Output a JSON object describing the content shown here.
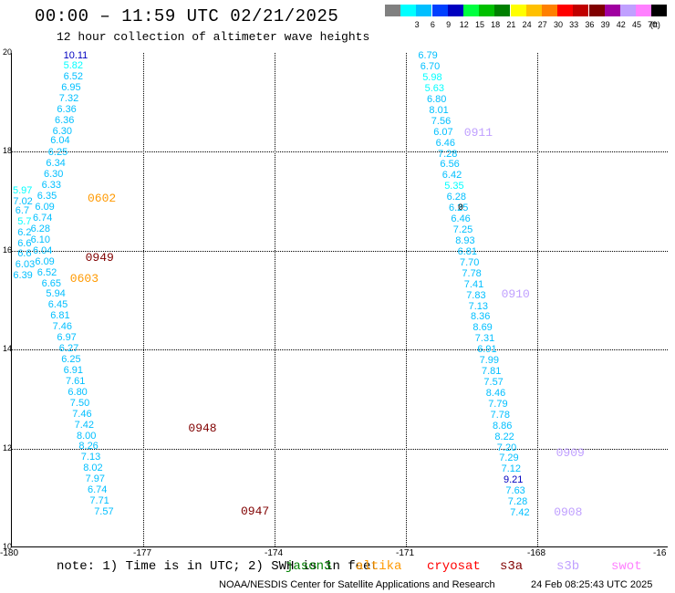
{
  "header": {
    "title": "00:00 – 11:59 UTC 02/21/2025",
    "subtitle": "12 hour collection of altimeter wave heights"
  },
  "legend": {
    "unit": "(ft)",
    "items": [
      {
        "label": "",
        "color": "#808080"
      },
      {
        "label": "3",
        "color": "#00ffff"
      },
      {
        "label": "6",
        "color": "#00bfff"
      },
      {
        "label": "9",
        "color": "#0040ff"
      },
      {
        "label": "12",
        "color": "#0000c0"
      },
      {
        "label": "15",
        "color": "#00ff40"
      },
      {
        "label": "18",
        "color": "#00c000"
      },
      {
        "label": "21",
        "color": "#008000"
      },
      {
        "label": "24",
        "color": "#ffff00"
      },
      {
        "label": "27",
        "color": "#ffc000"
      },
      {
        "label": "30",
        "color": "#ff8000"
      },
      {
        "label": "33",
        "color": "#ff0000"
      },
      {
        "label": "36",
        "color": "#c00000"
      },
      {
        "label": "39",
        "color": "#800000"
      },
      {
        "label": "42",
        "color": "#a000a0"
      },
      {
        "label": "45",
        "color": "#c0a0ff"
      },
      {
        "label": "70",
        "color": "#ff80ff"
      },
      {
        "label": "",
        "color": "#000000"
      }
    ]
  },
  "axes": {
    "x_ticks": [
      "-180",
      "-177",
      "-174",
      "-171",
      "-168",
      "-16"
    ],
    "y_ticks": [
      "20",
      "18",
      "16",
      "14",
      "12",
      "10"
    ]
  },
  "chart_data": {
    "type": "scatter",
    "xlim": [
      -180,
      -165
    ],
    "ylim": [
      10,
      20
    ],
    "tracks": [
      {
        "id": "west",
        "points": [
          {
            "lon": -178.8,
            "lat": 19.94,
            "v": "10.11",
            "c": "#0000c0"
          },
          {
            "lon": -178.8,
            "lat": 19.74,
            "v": "5.82",
            "c": "#00ffff"
          },
          {
            "lon": -178.8,
            "lat": 19.52,
            "v": "6.52",
            "c": "#00bfff"
          },
          {
            "lon": -178.85,
            "lat": 19.3,
            "v": "6.95",
            "c": "#00bfff"
          },
          {
            "lon": -178.9,
            "lat": 19.08,
            "v": "7.32",
            "c": "#00bfff"
          },
          {
            "lon": -178.95,
            "lat": 18.86,
            "v": "6.36",
            "c": "#00bfff"
          },
          {
            "lon": -179.0,
            "lat": 18.64,
            "v": "6.36",
            "c": "#00bfff"
          },
          {
            "lon": -179.05,
            "lat": 18.42,
            "v": "6.30",
            "c": "#00bfff"
          },
          {
            "lon": -179.1,
            "lat": 18.22,
            "v": "6.04",
            "c": "#00bfff"
          },
          {
            "lon": -179.15,
            "lat": 17.98,
            "v": "6.25",
            "c": "#00bfff"
          },
          {
            "lon": -179.2,
            "lat": 17.76,
            "v": "6.34",
            "c": "#00bfff"
          },
          {
            "lon": -179.25,
            "lat": 17.54,
            "v": "6.30",
            "c": "#00bfff"
          },
          {
            "lon": -179.3,
            "lat": 17.32,
            "v": "6.33",
            "c": "#00bfff"
          },
          {
            "lon": -179.4,
            "lat": 17.1,
            "v": "6.35",
            "c": "#00bfff"
          },
          {
            "lon": -179.45,
            "lat": 16.88,
            "v": "6.09",
            "c": "#00bfff"
          },
          {
            "lon": -179.5,
            "lat": 16.66,
            "v": "6.74",
            "c": "#00bfff"
          },
          {
            "lon": -179.55,
            "lat": 16.44,
            "v": "6.28",
            "c": "#00bfff"
          },
          {
            "lon": -179.55,
            "lat": 16.22,
            "v": "6.10",
            "c": "#00bfff"
          },
          {
            "lon": -179.5,
            "lat": 16.0,
            "v": "6.04",
            "c": "#00bfff"
          },
          {
            "lon": -179.45,
            "lat": 15.78,
            "v": "6.09",
            "c": "#00bfff"
          },
          {
            "lon": -179.4,
            "lat": 15.56,
            "v": "6.52",
            "c": "#00bfff"
          },
          {
            "lon": -179.3,
            "lat": 15.34,
            "v": "6.65",
            "c": "#00bfff"
          },
          {
            "lon": -179.2,
            "lat": 15.12,
            "v": "5.94",
            "c": "#00bfff"
          },
          {
            "lon": -179.15,
            "lat": 14.9,
            "v": "6.45",
            "c": "#00bfff"
          },
          {
            "lon": -179.1,
            "lat": 14.68,
            "v": "6.81",
            "c": "#00bfff"
          },
          {
            "lon": -179.05,
            "lat": 14.46,
            "v": "7.46",
            "c": "#00bfff"
          },
          {
            "lon": -178.95,
            "lat": 14.24,
            "v": "6.97",
            "c": "#00bfff"
          },
          {
            "lon": -178.9,
            "lat": 14.02,
            "v": "6.27",
            "c": "#00bfff"
          },
          {
            "lon": -178.85,
            "lat": 13.8,
            "v": "6.25",
            "c": "#00bfff"
          },
          {
            "lon": -178.8,
            "lat": 13.58,
            "v": "6.91",
            "c": "#00bfff"
          },
          {
            "lon": -178.75,
            "lat": 13.36,
            "v": "7.61",
            "c": "#00bfff"
          },
          {
            "lon": -178.7,
            "lat": 13.14,
            "v": "6.80",
            "c": "#00bfff"
          },
          {
            "lon": -178.65,
            "lat": 12.92,
            "v": "7.50",
            "c": "#00bfff"
          },
          {
            "lon": -178.6,
            "lat": 12.7,
            "v": "7.46",
            "c": "#00bfff"
          },
          {
            "lon": -178.55,
            "lat": 12.48,
            "v": "7.42",
            "c": "#00bfff"
          },
          {
            "lon": -178.5,
            "lat": 12.26,
            "v": "8.00",
            "c": "#00bfff"
          },
          {
            "lon": -178.45,
            "lat": 12.04,
            "v": "8.26",
            "c": "#00bfff"
          },
          {
            "lon": -178.4,
            "lat": 11.82,
            "v": "7.13",
            "c": "#00bfff"
          },
          {
            "lon": -178.35,
            "lat": 11.6,
            "v": "8.02",
            "c": "#00bfff"
          },
          {
            "lon": -178.3,
            "lat": 11.38,
            "v": "7.97",
            "c": "#00bfff"
          },
          {
            "lon": -178.25,
            "lat": 11.16,
            "v": "6.74",
            "c": "#00bfff"
          },
          {
            "lon": -178.2,
            "lat": 10.94,
            "v": "7.71",
            "c": "#00bfff"
          },
          {
            "lon": -178.1,
            "lat": 10.72,
            "v": "7.57",
            "c": "#00bfff"
          }
        ]
      },
      {
        "id": "west-branch",
        "points": [
          {
            "lon": -180.0,
            "lat": 17.22,
            "v": "5.97",
            "c": "#00ffff"
          },
          {
            "lon": -179.95,
            "lat": 17.0,
            "v": "7.02",
            "c": "#00bfff"
          },
          {
            "lon": -179.9,
            "lat": 16.8,
            "v": "6.7",
            "c": "#00bfff"
          },
          {
            "lon": -179.85,
            "lat": 16.58,
            "v": "5.7",
            "c": "#00ffff"
          },
          {
            "lon": -179.85,
            "lat": 16.36,
            "v": "6.2",
            "c": "#00bfff"
          },
          {
            "lon": -179.85,
            "lat": 16.14,
            "v": "6.6",
            "c": "#00bfff"
          },
          {
            "lon": -179.85,
            "lat": 15.94,
            "v": "6.6",
            "c": "#00bfff"
          },
          {
            "lon": -179.9,
            "lat": 15.72,
            "v": "6.03",
            "c": "#00bfff"
          },
          {
            "lon": -179.95,
            "lat": 15.5,
            "v": "6.39",
            "c": "#00bfff"
          }
        ]
      },
      {
        "id": "east",
        "points": [
          {
            "lon": -170.7,
            "lat": 19.94,
            "v": "6.79",
            "c": "#00bfff"
          },
          {
            "lon": -170.65,
            "lat": 19.72,
            "v": "6.70",
            "c": "#00bfff"
          },
          {
            "lon": -170.6,
            "lat": 19.5,
            "v": "5.98",
            "c": "#00ffff"
          },
          {
            "lon": -170.55,
            "lat": 19.28,
            "v": "5.63",
            "c": "#00ffff"
          },
          {
            "lon": -170.5,
            "lat": 19.06,
            "v": "6.80",
            "c": "#00bfff"
          },
          {
            "lon": -170.45,
            "lat": 18.84,
            "v": "8.01",
            "c": "#00bfff"
          },
          {
            "lon": -170.4,
            "lat": 18.62,
            "v": "7.56",
            "c": "#00bfff"
          },
          {
            "lon": -170.35,
            "lat": 18.4,
            "v": "6.07",
            "c": "#00bfff"
          },
          {
            "lon": -170.3,
            "lat": 18.18,
            "v": "6.46",
            "c": "#00bfff"
          },
          {
            "lon": -170.25,
            "lat": 17.96,
            "v": "7.28",
            "c": "#00bfff"
          },
          {
            "lon": -170.2,
            "lat": 17.74,
            "v": "6.56",
            "c": "#00bfff"
          },
          {
            "lon": -170.15,
            "lat": 17.52,
            "v": "6.42",
            "c": "#00bfff"
          },
          {
            "lon": -170.1,
            "lat": 17.3,
            "v": "5.35",
            "c": "#00ffff"
          },
          {
            "lon": -170.05,
            "lat": 17.08,
            "v": "6.28",
            "c": "#00bfff"
          },
          {
            "lon": -170.0,
            "lat": 16.86,
            "v": "6.25",
            "c": "#00bfff"
          },
          {
            "lon": -169.95,
            "lat": 16.64,
            "v": "6.46",
            "c": "#00bfff"
          },
          {
            "lon": -169.9,
            "lat": 16.42,
            "v": "7.25",
            "c": "#00bfff"
          },
          {
            "lon": -169.85,
            "lat": 16.2,
            "v": "8.93",
            "c": "#00bfff"
          },
          {
            "lon": -169.8,
            "lat": 15.98,
            "v": "6.81",
            "c": "#00bfff"
          },
          {
            "lon": -169.75,
            "lat": 15.76,
            "v": "7.70",
            "c": "#00bfff"
          },
          {
            "lon": -169.7,
            "lat": 15.54,
            "v": "7.78",
            "c": "#00bfff"
          },
          {
            "lon": -169.65,
            "lat": 15.32,
            "v": "7.41",
            "c": "#00bfff"
          },
          {
            "lon": -169.6,
            "lat": 15.1,
            "v": "7.83",
            "c": "#00bfff"
          },
          {
            "lon": -169.55,
            "lat": 14.88,
            "v": "7.13",
            "c": "#00bfff"
          },
          {
            "lon": -169.5,
            "lat": 14.66,
            "v": "8.36",
            "c": "#00bfff"
          },
          {
            "lon": -169.45,
            "lat": 14.44,
            "v": "8.69",
            "c": "#00bfff"
          },
          {
            "lon": -169.4,
            "lat": 14.22,
            "v": "7.31",
            "c": "#00bfff"
          },
          {
            "lon": -169.35,
            "lat": 14.0,
            "v": "6.91",
            "c": "#00bfff"
          },
          {
            "lon": -169.3,
            "lat": 13.78,
            "v": "7.99",
            "c": "#00bfff"
          },
          {
            "lon": -169.25,
            "lat": 13.56,
            "v": "7.81",
            "c": "#00bfff"
          },
          {
            "lon": -169.2,
            "lat": 13.34,
            "v": "7.57",
            "c": "#00bfff"
          },
          {
            "lon": -169.15,
            "lat": 13.12,
            "v": "8.46",
            "c": "#00bfff"
          },
          {
            "lon": -169.1,
            "lat": 12.9,
            "v": "7.79",
            "c": "#00bfff"
          },
          {
            "lon": -169.05,
            "lat": 12.68,
            "v": "7.78",
            "c": "#00bfff"
          },
          {
            "lon": -169.0,
            "lat": 12.46,
            "v": "8.86",
            "c": "#00bfff"
          },
          {
            "lon": -168.95,
            "lat": 12.24,
            "v": "8.22",
            "c": "#00bfff"
          },
          {
            "lon": -168.9,
            "lat": 12.02,
            "v": "7.20",
            "c": "#00bfff"
          },
          {
            "lon": -168.85,
            "lat": 11.8,
            "v": "7.29",
            "c": "#00bfff"
          },
          {
            "lon": -168.8,
            "lat": 11.58,
            "v": "7.12",
            "c": "#00bfff"
          },
          {
            "lon": -168.75,
            "lat": 11.36,
            "v": "9.21",
            "c": "#0000c0"
          },
          {
            "lon": -168.7,
            "lat": 11.14,
            "v": "7.63",
            "c": "#00bfff"
          },
          {
            "lon": -168.65,
            "lat": 10.92,
            "v": "7.28",
            "c": "#00bfff"
          },
          {
            "lon": -168.6,
            "lat": 10.7,
            "v": "7.42",
            "c": "#00bfff"
          }
        ]
      }
    ],
    "time_labels": [
      {
        "lon": -178.25,
        "lat": 17.06,
        "v": "0602",
        "c": "#ff9900"
      },
      {
        "lon": -178.3,
        "lat": 15.86,
        "v": "0949",
        "c": "#800000"
      },
      {
        "lon": -178.65,
        "lat": 15.44,
        "v": "0603",
        "c": "#ff9900"
      },
      {
        "lon": -175.95,
        "lat": 12.42,
        "v": "0948",
        "c": "#800000"
      },
      {
        "lon": -174.75,
        "lat": 10.74,
        "v": "0947",
        "c": "#800000"
      },
      {
        "lon": -169.65,
        "lat": 18.4,
        "v": "0911",
        "c": "#c0a0ff"
      },
      {
        "lon": -170.0,
        "lat": 16.86,
        "v": "0",
        "c": "#000000"
      },
      {
        "lon": -168.8,
        "lat": 15.12,
        "v": "0910",
        "c": "#c0a0ff"
      },
      {
        "lon": -167.55,
        "lat": 11.92,
        "v": "0909",
        "c": "#c0a0ff"
      },
      {
        "lon": -167.6,
        "lat": 10.72,
        "v": "0908",
        "c": "#c0a0ff"
      }
    ]
  },
  "footer": {
    "note": "note: 1) Time is in UTC; 2) SWH is in feet",
    "satellites": [
      {
        "name": "jason3",
        "color": "#008000"
      },
      {
        "name": "altika",
        "color": "#ff9900"
      },
      {
        "name": "cryosat",
        "color": "#ff0000"
      },
      {
        "name": "s3a",
        "color": "#800000"
      },
      {
        "name": "s3b",
        "color": "#c0a0ff"
      },
      {
        "name": "swot",
        "color": "#ff80ff"
      }
    ],
    "credit": "NOAA/NESDIS Center for Satellite Applications and Research",
    "timestamp": "24 Feb 08:25:43 UTC 2025"
  }
}
